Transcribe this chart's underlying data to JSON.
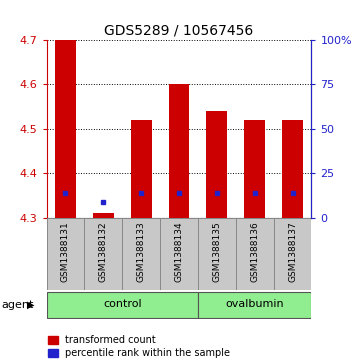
{
  "title": "GDS5289 / 10567456",
  "samples": [
    "GSM1388131",
    "GSM1388132",
    "GSM1388133",
    "GSM1388134",
    "GSM1388135",
    "GSM1388136",
    "GSM1388137"
  ],
  "bar_tops": [
    4.7,
    4.31,
    4.52,
    4.6,
    4.54,
    4.52,
    4.52
  ],
  "bar_bottom": 4.3,
  "percentile_values": [
    4.355,
    4.335,
    4.355,
    4.355,
    4.355,
    4.355,
    4.355
  ],
  "bar_color": "#cc0000",
  "percentile_color": "#2222cc",
  "ylim": [
    4.3,
    4.7
  ],
  "yticks_left": [
    4.3,
    4.4,
    4.5,
    4.6,
    4.7
  ],
  "yticks_right_vals": [
    0,
    25,
    50,
    75,
    100
  ],
  "left_tick_color": "#cc0000",
  "right_tick_color": "#2222cc",
  "control_span": [
    0,
    3
  ],
  "ovalbumin_span": [
    4,
    6
  ],
  "group_fill": "#90ee90",
  "label_fill": "#c8c8c8",
  "label_edge": "#888888",
  "legend_items": [
    {
      "label": "transformed count",
      "color": "#cc0000"
    },
    {
      "label": "percentile rank within the sample",
      "color": "#2222cc"
    }
  ],
  "bar_width": 0.55
}
